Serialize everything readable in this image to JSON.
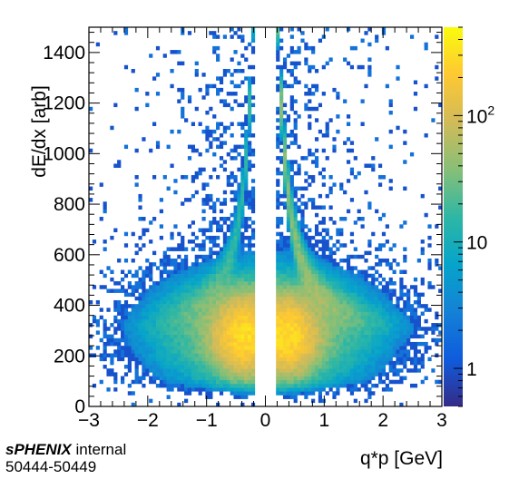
{
  "chart_data": {
    "type": "heatmap",
    "title": "",
    "xlabel": "q*p [GeV]",
    "ylabel": "dE/dx [arb]",
    "xlim": [
      -3,
      3
    ],
    "ylim": [
      0,
      1500
    ],
    "x_ticks": [
      "−3",
      "−2",
      "−1",
      "0",
      "1",
      "2",
      "3"
    ],
    "y_ticks": [
      "0",
      "200",
      "400",
      "600",
      "800",
      "1000",
      "1200",
      "1400"
    ],
    "z_scale": "log",
    "z_range": [
      0.5,
      500
    ],
    "z_ticks": [
      {
        "value": 1,
        "label": "1"
      },
      {
        "value": 10,
        "label": "10"
      },
      {
        "value": 100,
        "label": "10",
        "exponent": "2"
      }
    ],
    "colormap": "kBird",
    "grid": false,
    "empty_band_x": [
      -0.15,
      0.15
    ],
    "peaks": [
      {
        "x": -0.35,
        "y": 280,
        "counts": 250
      },
      {
        "x": 0.35,
        "y": 280,
        "counts": 250
      }
    ],
    "band": "proton dE/dx band rising to high dE/dx at low |q*p|, stronger on positive side"
  },
  "experiment": "sPHENIX",
  "status": "internal",
  "run_range": "50444-50449",
  "colors": {
    "bird_palette": [
      "#352a87",
      "#0f5cdd",
      "#1481d6",
      "#06a4ca",
      "#2eb7a4",
      "#87bf77",
      "#d1bb59",
      "#fec832",
      "#f9fb0e"
    ]
  }
}
